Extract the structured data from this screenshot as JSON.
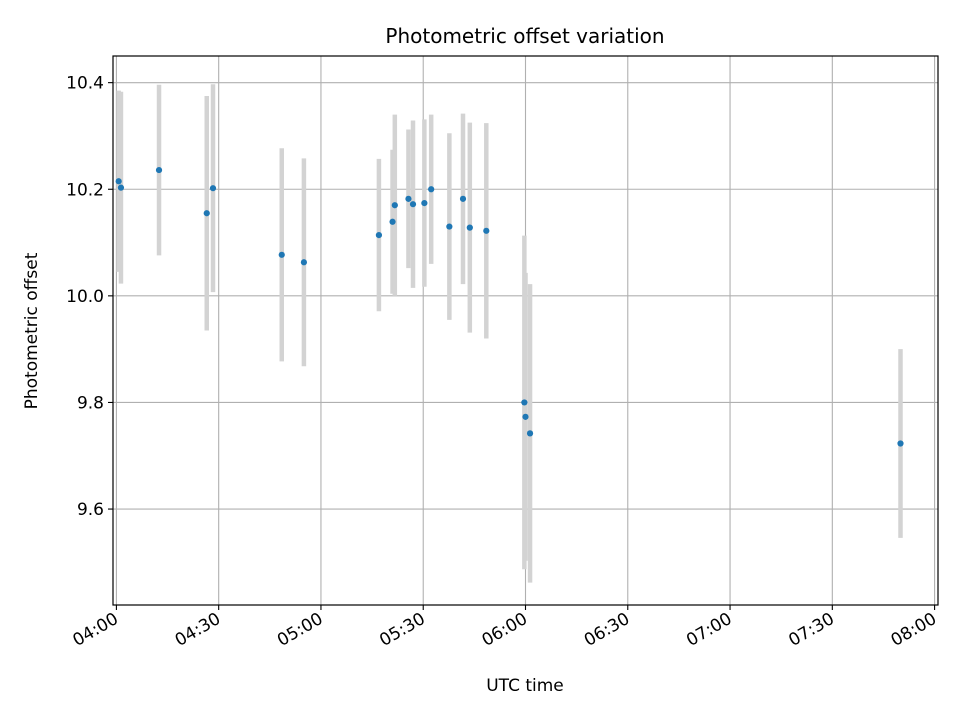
{
  "chart_data": {
    "type": "scatter",
    "title": "Photometric offset variation",
    "xlabel": "UTC time",
    "ylabel": "Photometric offset",
    "x_ticks": [
      "04:00",
      "04:30",
      "05:00",
      "05:30",
      "06:00",
      "06:30",
      "07:00",
      "07:30",
      "08:00"
    ],
    "y_ticks": [
      "9.6",
      "9.8",
      "10.0",
      "10.2",
      "10.4"
    ],
    "ylim": [
      9.42,
      10.45
    ],
    "xlim": [
      "03:59",
      "08:01"
    ],
    "grid": true,
    "colors": {
      "marker": "#1f77b4",
      "errorbar": "#d3d3d3",
      "grid": "#b0b0b0"
    },
    "points": [
      {
        "t": "04:00:40",
        "y": 10.215,
        "err": 0.17
      },
      {
        "t": "04:01:20",
        "y": 10.203,
        "err": 0.18
      },
      {
        "t": "04:12:30",
        "y": 10.236,
        "err": 0.16
      },
      {
        "t": "04:26:30",
        "y": 10.155,
        "err": 0.22
      },
      {
        "t": "04:28:20",
        "y": 10.202,
        "err": 0.195
      },
      {
        "t": "04:48:30",
        "y": 10.077,
        "err": 0.2
      },
      {
        "t": "04:55:00",
        "y": 10.063,
        "err": 0.195
      },
      {
        "t": "05:17:00",
        "y": 10.114,
        "err": 0.143
      },
      {
        "t": "05:21:00",
        "y": 10.139,
        "err": 0.135
      },
      {
        "t": "05:21:40",
        "y": 10.17,
        "err": 0.17
      },
      {
        "t": "05:25:40",
        "y": 10.182,
        "err": 0.13
      },
      {
        "t": "05:27:00",
        "y": 10.172,
        "err": 0.157
      },
      {
        "t": "05:30:20",
        "y": 10.174,
        "err": 0.157
      },
      {
        "t": "05:32:20",
        "y": 10.2,
        "err": 0.14
      },
      {
        "t": "05:37:40",
        "y": 10.13,
        "err": 0.175
      },
      {
        "t": "05:41:40",
        "y": 10.182,
        "err": 0.16
      },
      {
        "t": "05:43:40",
        "y": 10.128,
        "err": 0.197
      },
      {
        "t": "05:48:30",
        "y": 10.122,
        "err": 0.202
      },
      {
        "t": "05:59:40",
        "y": 9.8,
        "err": 0.313
      },
      {
        "t": "06:00:00",
        "y": 9.773,
        "err": 0.27
      },
      {
        "t": "06:01:20",
        "y": 9.742,
        "err": 0.28
      },
      {
        "t": "07:50:00",
        "y": 9.723,
        "err": 0.177
      }
    ]
  }
}
